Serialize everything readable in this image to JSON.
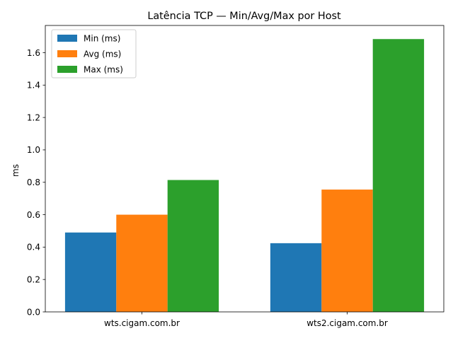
{
  "chart_data": {
    "type": "bar",
    "title": "Latência TCP — Min/Avg/Max por Host",
    "xlabel": "",
    "ylabel": "ms",
    "categories": [
      "wts.cigam.com.br",
      "wts2.cigam.com.br"
    ],
    "series": [
      {
        "name": "Min (ms)",
        "values": [
          0.49,
          0.424
        ],
        "color": "#1f77b4"
      },
      {
        "name": "Avg (ms)",
        "values": [
          0.6,
          0.755
        ],
        "color": "#ff7f0e"
      },
      {
        "name": "Max (ms)",
        "values": [
          0.814,
          1.684
        ],
        "color": "#2ca02c"
      }
    ],
    "ylim": [
      0,
      1.768
    ],
    "yticks": [
      "0.0",
      "0.2",
      "0.4",
      "0.6",
      "0.8",
      "1.0",
      "1.2",
      "1.4",
      "1.6"
    ],
    "grid": false,
    "legend_position": "top-left"
  }
}
